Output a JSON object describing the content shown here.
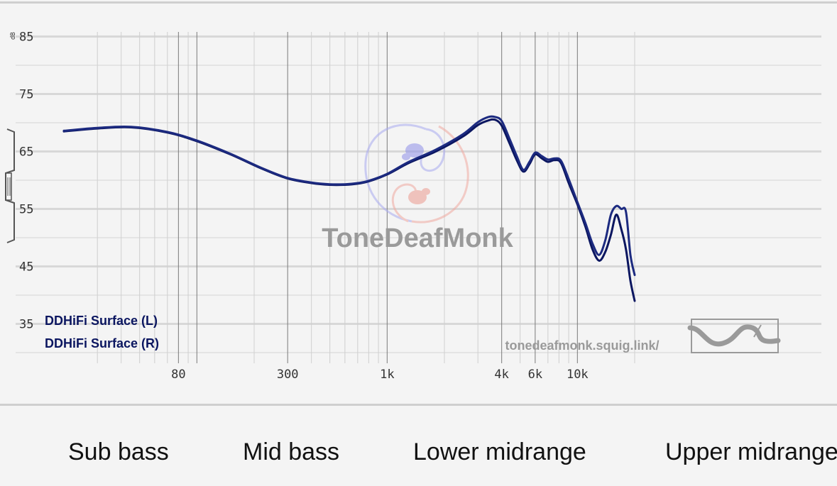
{
  "chart_data": {
    "type": "line",
    "ylabel": "dB",
    "y_ticks": [
      85,
      75,
      65,
      55,
      45,
      35
    ],
    "x_ticks": [
      {
        "label": "80",
        "f": 80
      },
      {
        "label": "300",
        "f": 300
      },
      {
        "label": "1k",
        "f": 1000
      },
      {
        "label": "4k",
        "f": 4000
      },
      {
        "label": "6k",
        "f": 6000
      },
      {
        "label": "10k",
        "f": 10000
      }
    ],
    "xscale": "log",
    "xlim": [
      20,
      20000
    ],
    "ylim": [
      30,
      85
    ],
    "legend_position": "bottom-left",
    "series": [
      {
        "name": "DDHiFi Surface (L)",
        "color": "#0b1660",
        "x": [
          20,
          30,
          45,
          70,
          100,
          150,
          220,
          300,
          400,
          500,
          600,
          700,
          800,
          1000,
          1300,
          1800,
          2500,
          3000,
          3400,
          3700,
          4000,
          4400,
          4800,
          5200,
          5600,
          6000,
          6500,
          7000,
          7600,
          8200,
          9000,
          10000,
          11000,
          12000,
          13000,
          14000,
          15000,
          16000,
          17000,
          18000,
          19000,
          20000
        ],
        "y": [
          68.5,
          69.0,
          69.2,
          68.3,
          66.8,
          64.5,
          62.0,
          60.3,
          59.5,
          59.2,
          59.2,
          59.4,
          59.8,
          61.0,
          63.0,
          65.0,
          67.6,
          69.6,
          70.4,
          70.5,
          69.5,
          66.4,
          63.5,
          61.5,
          62.8,
          64.5,
          63.8,
          63.2,
          63.5,
          63.0,
          59.5,
          55.8,
          52.0,
          48.0,
          46.0,
          47.5,
          50.5,
          54.0,
          51.5,
          48.0,
          42.5,
          39.0
        ]
      },
      {
        "name": "DDHiFi Surface (R)",
        "color": "#1c2a80",
        "x": [
          20,
          30,
          45,
          70,
          100,
          150,
          220,
          300,
          400,
          500,
          600,
          700,
          800,
          1000,
          1300,
          1800,
          2500,
          3000,
          3400,
          3700,
          4000,
          4400,
          4800,
          5200,
          5600,
          6000,
          6500,
          7000,
          7600,
          8200,
          9000,
          10000,
          11000,
          12000,
          13000,
          14000,
          15000,
          16000,
          17000,
          18000,
          19000,
          20000
        ],
        "y": [
          68.6,
          69.1,
          69.3,
          68.4,
          66.9,
          64.6,
          62.1,
          60.4,
          59.6,
          59.3,
          59.3,
          59.5,
          59.9,
          61.1,
          63.2,
          65.3,
          68.0,
          70.1,
          71.0,
          71.0,
          70.3,
          67.2,
          64.2,
          61.8,
          63.2,
          64.8,
          64.2,
          63.6,
          63.8,
          63.4,
          60.2,
          56.2,
          52.6,
          49.0,
          47.0,
          49.5,
          54.0,
          55.5,
          55.0,
          54.5,
          47.0,
          43.5
        ]
      }
    ]
  },
  "watermark": "ToneDeafMonk",
  "url": "tonedeafmonk.squig.link/",
  "bands": [
    "Sub bass",
    "Mid bass",
    "Lower midrange",
    "Upper midrange"
  ]
}
